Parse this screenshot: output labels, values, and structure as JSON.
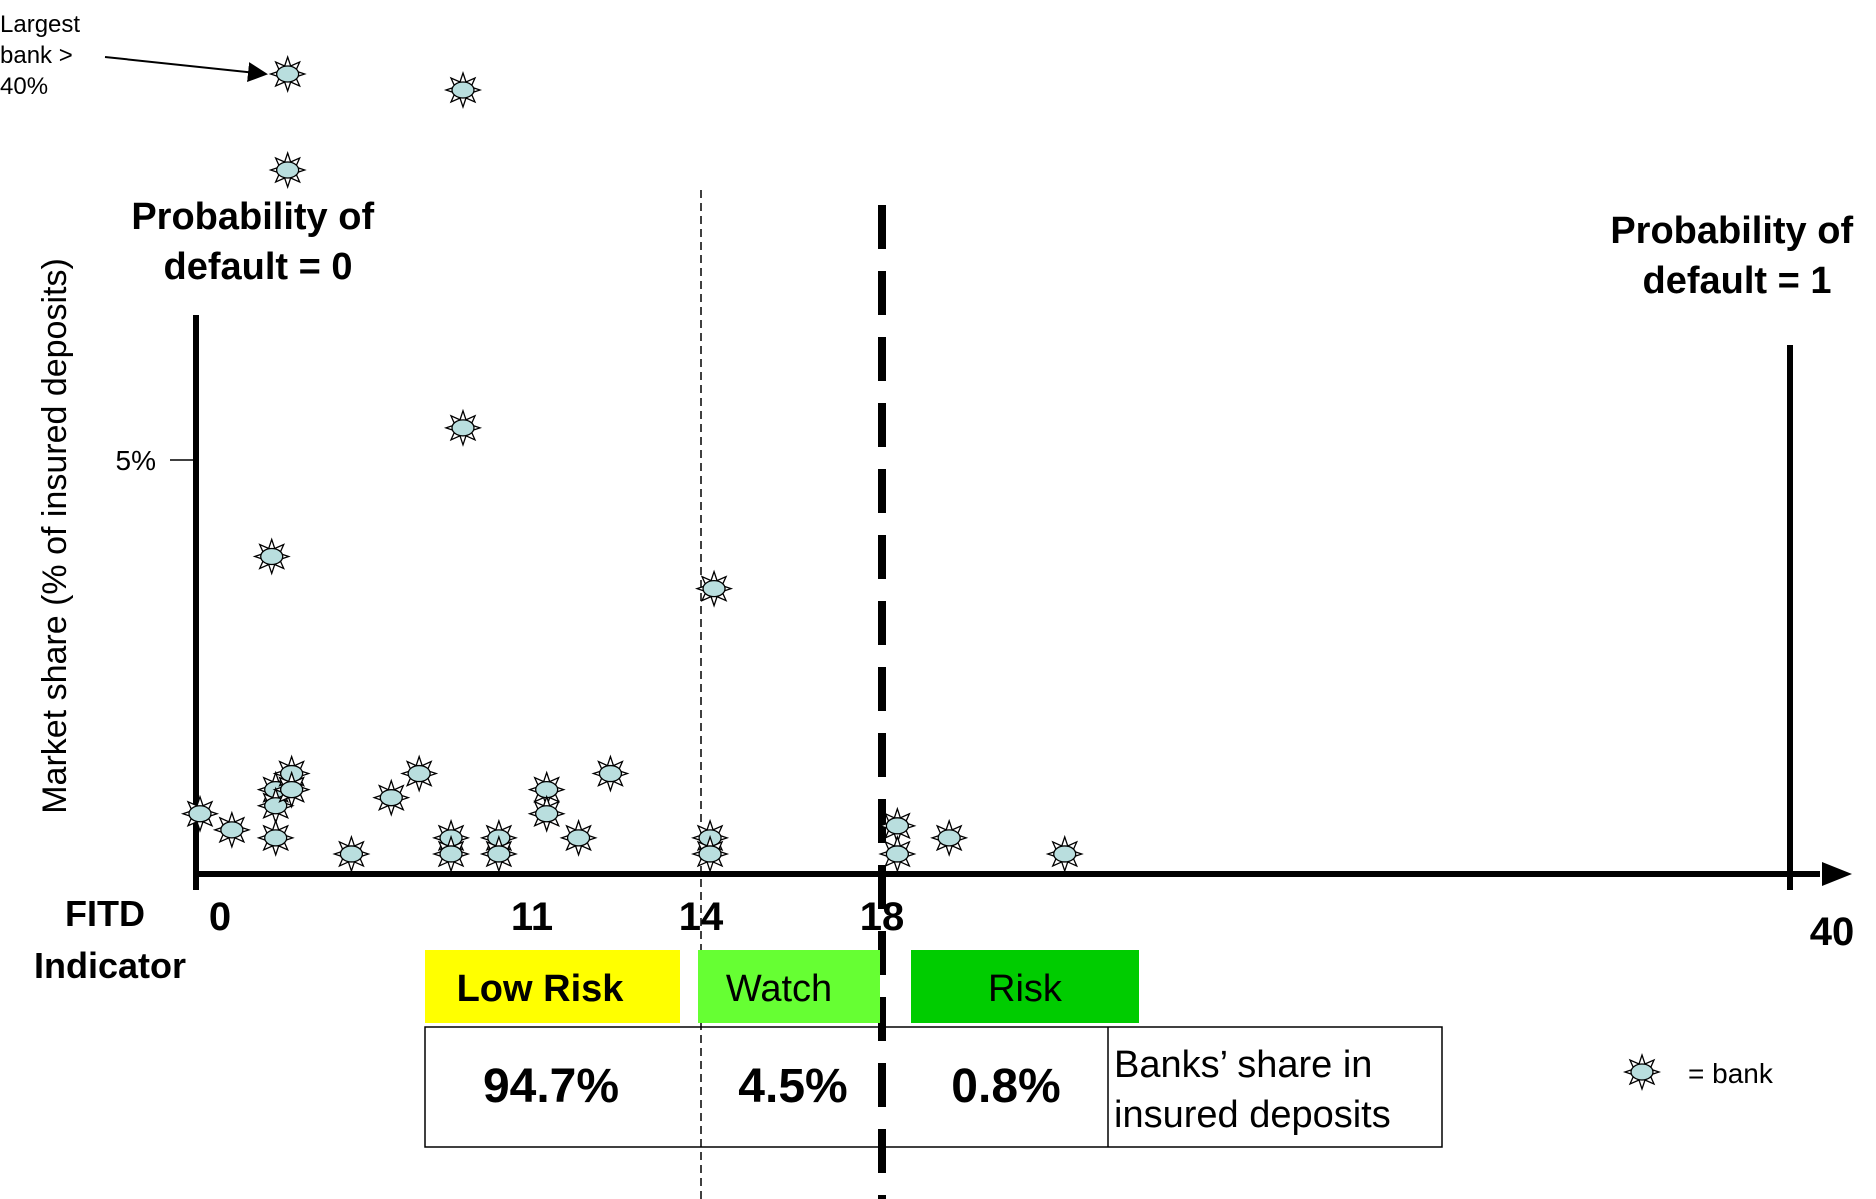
{
  "chart_data": {
    "type": "scatter",
    "title": "",
    "xlabel": "FITD Indicator",
    "ylabel": "Market share (% of insured deposits)",
    "x_ticks": [
      "0",
      "11",
      "14",
      "18",
      "40"
    ],
    "y_ticks": [
      "5%"
    ],
    "xlim": [
      0,
      40
    ],
    "ylim": [
      0,
      7.5
    ],
    "thresholds": [
      {
        "x": 14,
        "style": "thin-dashed"
      },
      {
        "x": 18,
        "style": "thick-dashed"
      }
    ],
    "points_in_plot": [
      {
        "x": 0.1,
        "y": 0.6
      },
      {
        "x": 0.9,
        "y": 0.4
      },
      {
        "x": 2.0,
        "y": 0.9
      },
      {
        "x": 2.0,
        "y": 0.7
      },
      {
        "x": 2.0,
        "y": 0.3
      },
      {
        "x": 2.4,
        "y": 1.1
      },
      {
        "x": 2.4,
        "y": 0.9
      },
      {
        "x": 3.9,
        "y": 0.1
      },
      {
        "x": 4.9,
        "y": 0.8
      },
      {
        "x": 5.6,
        "y": 1.1
      },
      {
        "x": 6.4,
        "y": 0.3
      },
      {
        "x": 6.4,
        "y": 0.1
      },
      {
        "x": 7.6,
        "y": 0.3
      },
      {
        "x": 7.6,
        "y": 0.1
      },
      {
        "x": 8.8,
        "y": 0.9
      },
      {
        "x": 8.8,
        "y": 0.6
      },
      {
        "x": 9.6,
        "y": 0.3
      },
      {
        "x": 10.4,
        "y": 1.1
      },
      {
        "x": 12.9,
        "y": 0.3
      },
      {
        "x": 12.9,
        "y": 0.1
      },
      {
        "x": 17.6,
        "y": 0.45
      },
      {
        "x": 17.6,
        "y": 0.1
      },
      {
        "x": 18.9,
        "y": 0.3
      },
      {
        "x": 21.8,
        "y": 0.1
      },
      {
        "x": 1.9,
        "y": 3.8
      },
      {
        "x": 13.0,
        "y": 3.4
      },
      {
        "x": 6.7,
        "y": 5.4
      }
    ],
    "points_above_scale": [
      {
        "x": 2.3,
        "y_note": "Largest bank > 40%"
      },
      {
        "x": 6.7
      },
      {
        "x": 2.3
      }
    ],
    "annotations": {
      "largest_bank": "Largest bank > 40%",
      "prob_default_zero": "Probability of default = 0",
      "prob_default_one": "Probability of default = 1"
    },
    "risk_bands": [
      {
        "label": "Low Risk",
        "share": "94.7%",
        "color": "#ffff00"
      },
      {
        "label": "Watch",
        "share": "4.5%",
        "color": "#66ff33"
      },
      {
        "label": "Risk",
        "share": "0.8%",
        "color": "#00cc00"
      }
    ],
    "share_row_label": "Banks’ share in insured deposits",
    "legend": {
      "symbol_label": "= bank"
    }
  },
  "colors": {
    "marker_fill": "#b9dede",
    "low_risk": "#ffff00",
    "watch": "#66ff33",
    "risk": "#00cc00"
  },
  "text": {
    "largest_bank_lines": [
      "Largest",
      "bank >",
      "40%"
    ],
    "pd0_lines": [
      "Probability of",
      "default = 0"
    ],
    "pd1_lines": [
      "Probability of",
      "default = 1"
    ],
    "xlabel_lines": [
      "FITD",
      "Indicator"
    ],
    "share_label_lines": [
      "Banks’ share in",
      "insured deposits"
    ],
    "legend_label": "= bank"
  }
}
